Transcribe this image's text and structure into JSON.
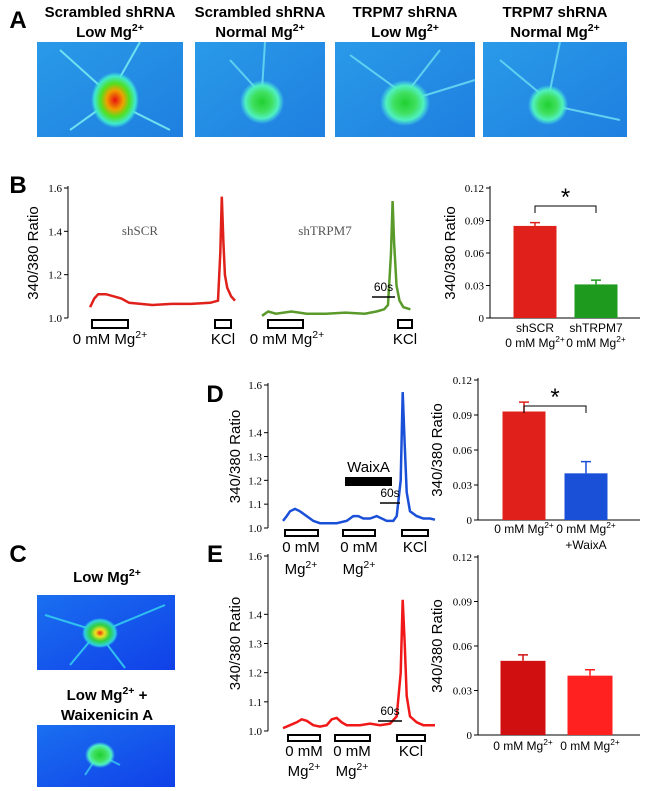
{
  "panel_labels": [
    "A",
    "B",
    "C",
    "D",
    "E"
  ],
  "figure_A": {
    "captions": [
      {
        "line1": {
          "text": "Scrambled shRNA"
        },
        "line2": {
          "text": "Low Mg",
          "sup": "2+"
        }
      },
      {
        "line1": {
          "text": "Scrambled shRNA"
        },
        "line2": {
          "text": "Normal Mg",
          "sup": "2+"
        }
      },
      {
        "line1": {
          "text": "TRPM7 shRNA"
        },
        "line2": {
          "text": "Low Mg",
          "sup": "2+"
        }
      },
      {
        "line1": {
          "text": "TRPM7 shRNA"
        },
        "line2": {
          "text": "Normal Mg",
          "sup": "2+"
        }
      }
    ]
  },
  "figure_C": {
    "captions": [
      {
        "line1": {
          "text": "Low Mg",
          "sup": "2+"
        }
      },
      {
        "line1": {
          "text": "Low Mg",
          "sup": "2+",
          "tail": " +"
        },
        "line2": {
          "text": "Waixenicin A"
        }
      }
    ]
  },
  "chart_data": [
    {
      "type": "line",
      "ylabel": "340/380 Ratio",
      "xlim": [
        0,
        880
      ],
      "ylim": [
        1.0,
        1.6
      ],
      "yticks": [
        {
          "value": 1.0,
          "label": "1.0"
        },
        1.2,
        1.4,
        1.6
      ],
      "series": [
        {
          "name": "shSCR",
          "color": "#e0201a",
          "x": [
            39,
            50,
            60,
            80,
            100,
            120,
            140,
            170,
            200,
            250,
            300,
            350,
            370,
            376,
            380,
            384,
            388,
            394,
            404,
            414
          ],
          "values": [
            1.05,
            1.09,
            1.11,
            1.11,
            1.1,
            1.09,
            1.07,
            1.065,
            1.06,
            1.065,
            1.065,
            1.07,
            1.08,
            1.3,
            1.56,
            1.35,
            1.2,
            1.14,
            1.1,
            1.08
          ]
        },
        {
          "name": "shTRPM7",
          "color": "#5a9a2a",
          "x": [
            484,
            500,
            520,
            560,
            600,
            650,
            700,
            750,
            780,
            800,
            810,
            818,
            822,
            826,
            832,
            840,
            850,
            868
          ],
          "values": [
            1.01,
            1.03,
            1.02,
            1.03,
            1.02,
            1.02,
            1.025,
            1.02,
            1.03,
            1.04,
            1.06,
            1.3,
            1.54,
            1.35,
            1.15,
            1.08,
            1.05,
            1.04
          ]
        }
      ],
      "annotations": [
        {
          "line1": {
            "text": "0 mM Mg",
            "sup": "2+"
          }
        },
        {
          "line1": {
            "text": "KCl"
          }
        },
        {
          "line1": {
            "text": "0 mM Mg",
            "sup": "2+"
          }
        },
        {
          "line1": {
            "text": "KCl"
          }
        }
      ],
      "scale_label": "60s"
    },
    {
      "type": "bar",
      "ylabel": "340/380 Ratio",
      "ylim": [
        0,
        0.12
      ],
      "yticks": [
        0,
        0.03,
        0.06,
        0.09,
        0.12
      ],
      "categories": [
        [
          {
            "text": "shSCR"
          },
          {
            "text": "0 mM Mg",
            "sup": "2+"
          }
        ],
        [
          {
            "text": "shTRPM7"
          },
          {
            "text": "0 mM Mg",
            "sup": "2+"
          }
        ]
      ],
      "values": [
        0.085,
        0.031
      ],
      "errors": [
        0.003,
        0.004
      ],
      "colors": [
        "#e0201a",
        "#1e9a1e"
      ],
      "significance": "*"
    },
    {
      "type": "line",
      "ylabel": "340/380 Ratio",
      "xlim": [
        0,
        510
      ],
      "ylim": [
        1.0,
        1.6
      ],
      "yticks": [
        {
          "value": 1.0,
          "label": "1.0"
        },
        1.1,
        1.2,
        1.3,
        1.4,
        1.6
      ],
      "series": [
        {
          "color": "#1a4fd8",
          "x": [
            39,
            50,
            60,
            75,
            90,
            110,
            130,
            150,
            170,
            200,
            230,
            250,
            265,
            280,
            300,
            320,
            350,
            370,
            380,
            392,
            398,
            404,
            410,
            420,
            440,
            460,
            480,
            495
          ],
          "values": [
            1.03,
            1.05,
            1.07,
            1.08,
            1.07,
            1.05,
            1.03,
            1.02,
            1.02,
            1.02,
            1.03,
            1.05,
            1.05,
            1.04,
            1.04,
            1.05,
            1.03,
            1.03,
            1.05,
            1.2,
            1.57,
            1.35,
            1.15,
            1.07,
            1.05,
            1.04,
            1.04,
            1.035
          ]
        }
      ],
      "annotations": [
        {
          "line1": {
            "text": "0 mM"
          },
          "line2": {
            "text": "Mg",
            "sup": "2+"
          }
        },
        {
          "line1": {
            "text": "0 mM"
          },
          "line2": {
            "text": "Mg",
            "sup": "2+"
          }
        },
        {
          "line1": {
            "text": "KCl"
          }
        }
      ],
      "drug_label": "WaixA",
      "scale_label": "60s"
    },
    {
      "type": "bar",
      "ylabel": "340/380 Ratio",
      "ylim": [
        0,
        0.12
      ],
      "yticks": [
        0,
        0.03,
        0.06,
        0.09,
        0.12
      ],
      "categories": [
        [
          {
            "text": "0 mM Mg",
            "sup": "2+"
          }
        ],
        [
          {
            "text": "0 mM Mg",
            "sup": "2+"
          },
          {
            "text": "+WaixA"
          }
        ]
      ],
      "values": [
        0.093,
        0.04
      ],
      "errors": [
        0.008,
        0.01
      ],
      "colors": [
        "#e0201a",
        "#1a4fd8"
      ],
      "significance": "*"
    },
    {
      "type": "line",
      "ylabel": "340/380 Ratio",
      "xlim": [
        0,
        510
      ],
      "ylim": [
        1.0,
        1.6
      ],
      "yticks": [
        {
          "value": 1.0,
          "label": "1.0"
        },
        1.1,
        1.2,
        1.3,
        1.4,
        1.6
      ],
      "series": [
        {
          "color": "#f01818",
          "x": [
            39,
            60,
            80,
            95,
            110,
            130,
            150,
            170,
            185,
            200,
            215,
            230,
            250,
            270,
            300,
            330,
            360,
            380,
            392,
            398,
            404,
            410,
            420,
            440,
            460,
            480,
            495
          ],
          "values": [
            1.01,
            1.02,
            1.03,
            1.04,
            1.035,
            1.02,
            1.015,
            1.02,
            1.04,
            1.045,
            1.03,
            1.02,
            1.02,
            1.02,
            1.025,
            1.02,
            1.025,
            1.05,
            1.2,
            1.45,
            1.3,
            1.12,
            1.05,
            1.03,
            1.02,
            1.02,
            1.02
          ]
        }
      ],
      "annotations": [
        {
          "line1": {
            "text": "0 mM"
          },
          "line2": {
            "text": "Mg",
            "sup": "2+"
          }
        },
        {
          "line1": {
            "text": "0 mM"
          },
          "line2": {
            "text": "Mg",
            "sup": "2+"
          }
        },
        {
          "line1": {
            "text": "KCl"
          }
        }
      ],
      "scale_label": "60s"
    },
    {
      "type": "bar",
      "ylabel": "340/380 Ratio",
      "ylim": [
        0,
        0.12
      ],
      "yticks": [
        0,
        0.03,
        0.06,
        0.09,
        0.12
      ],
      "categories": [
        [
          {
            "text": "0 mM Mg",
            "sup": "2+"
          }
        ],
        [
          {
            "text": "0 mM Mg",
            "sup": "2+"
          }
        ]
      ],
      "values": [
        0.05,
        0.04
      ],
      "errors": [
        0.004,
        0.004
      ],
      "colors": [
        "#d01010",
        "#ff2020"
      ]
    }
  ]
}
